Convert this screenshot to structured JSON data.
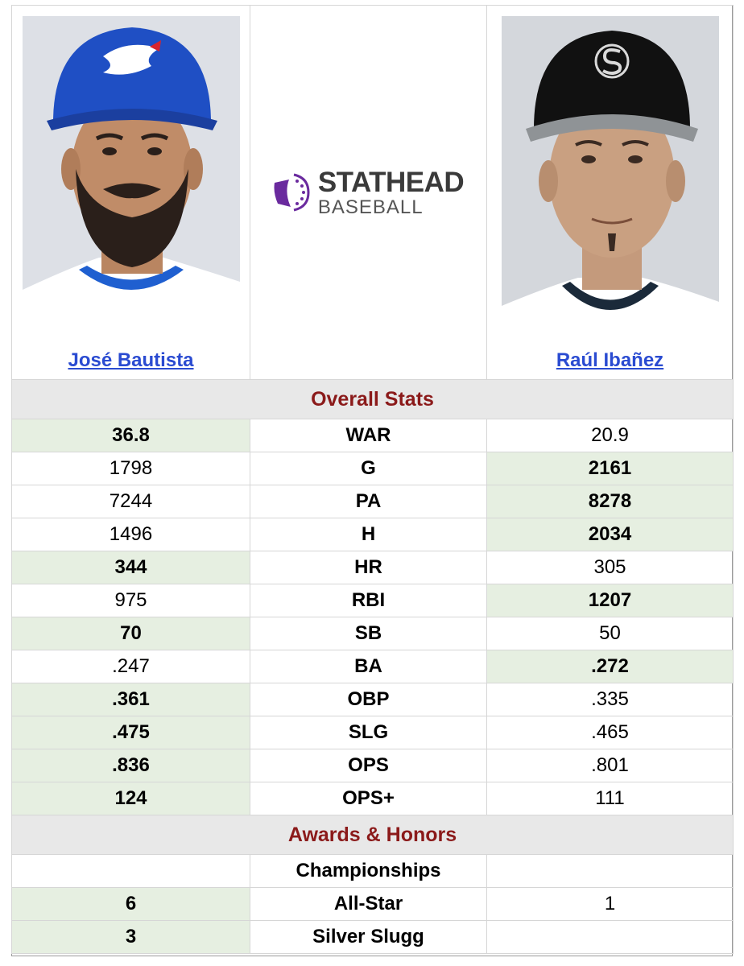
{
  "players": {
    "left": {
      "name": "José Bautista",
      "team_colors": {
        "cap": "#1f4fc4",
        "bill": "#1b3f9f",
        "jersey": "#ffffff",
        "trim": "#1f5fd0"
      }
    },
    "right": {
      "name": "Raúl Ibañez",
      "team_colors": {
        "cap": "#111111",
        "bill": "#8f9396",
        "jersey": "#ffffff",
        "trim": "#1b2a3a"
      }
    }
  },
  "logo": {
    "brand_top": "STATHEAD",
    "brand_bottom": "BASEBALL",
    "accent": "#6a2a9e"
  },
  "sections": {
    "overall": "Overall Stats",
    "awards": "Awards & Honors"
  },
  "overall_stats": [
    {
      "label": "WAR",
      "left": "36.8",
      "right": "20.9",
      "winner": "left"
    },
    {
      "label": "G",
      "left": "1798",
      "right": "2161",
      "winner": "right"
    },
    {
      "label": "PA",
      "left": "7244",
      "right": "8278",
      "winner": "right"
    },
    {
      "label": "H",
      "left": "1496",
      "right": "2034",
      "winner": "right"
    },
    {
      "label": "HR",
      "left": "344",
      "right": "305",
      "winner": "left"
    },
    {
      "label": "RBI",
      "left": "975",
      "right": "1207",
      "winner": "right"
    },
    {
      "label": "SB",
      "left": "70",
      "right": "50",
      "winner": "left"
    },
    {
      "label": "BA",
      "left": ".247",
      "right": ".272",
      "winner": "right"
    },
    {
      "label": "OBP",
      "left": ".361",
      "right": ".335",
      "winner": "left"
    },
    {
      "label": "SLG",
      "left": ".475",
      "right": ".465",
      "winner": "left"
    },
    {
      "label": "OPS",
      "left": ".836",
      "right": ".801",
      "winner": "left"
    },
    {
      "label": "OPS+",
      "left": "124",
      "right": "111",
      "winner": "left"
    }
  ],
  "awards": [
    {
      "label": "Championships",
      "left": "",
      "right": "",
      "winner": "none"
    },
    {
      "label": "All-Star",
      "left": "6",
      "right": "1",
      "winner": "left"
    },
    {
      "label": "Silver Slugg",
      "left": "3",
      "right": "",
      "winner": "left"
    }
  ]
}
